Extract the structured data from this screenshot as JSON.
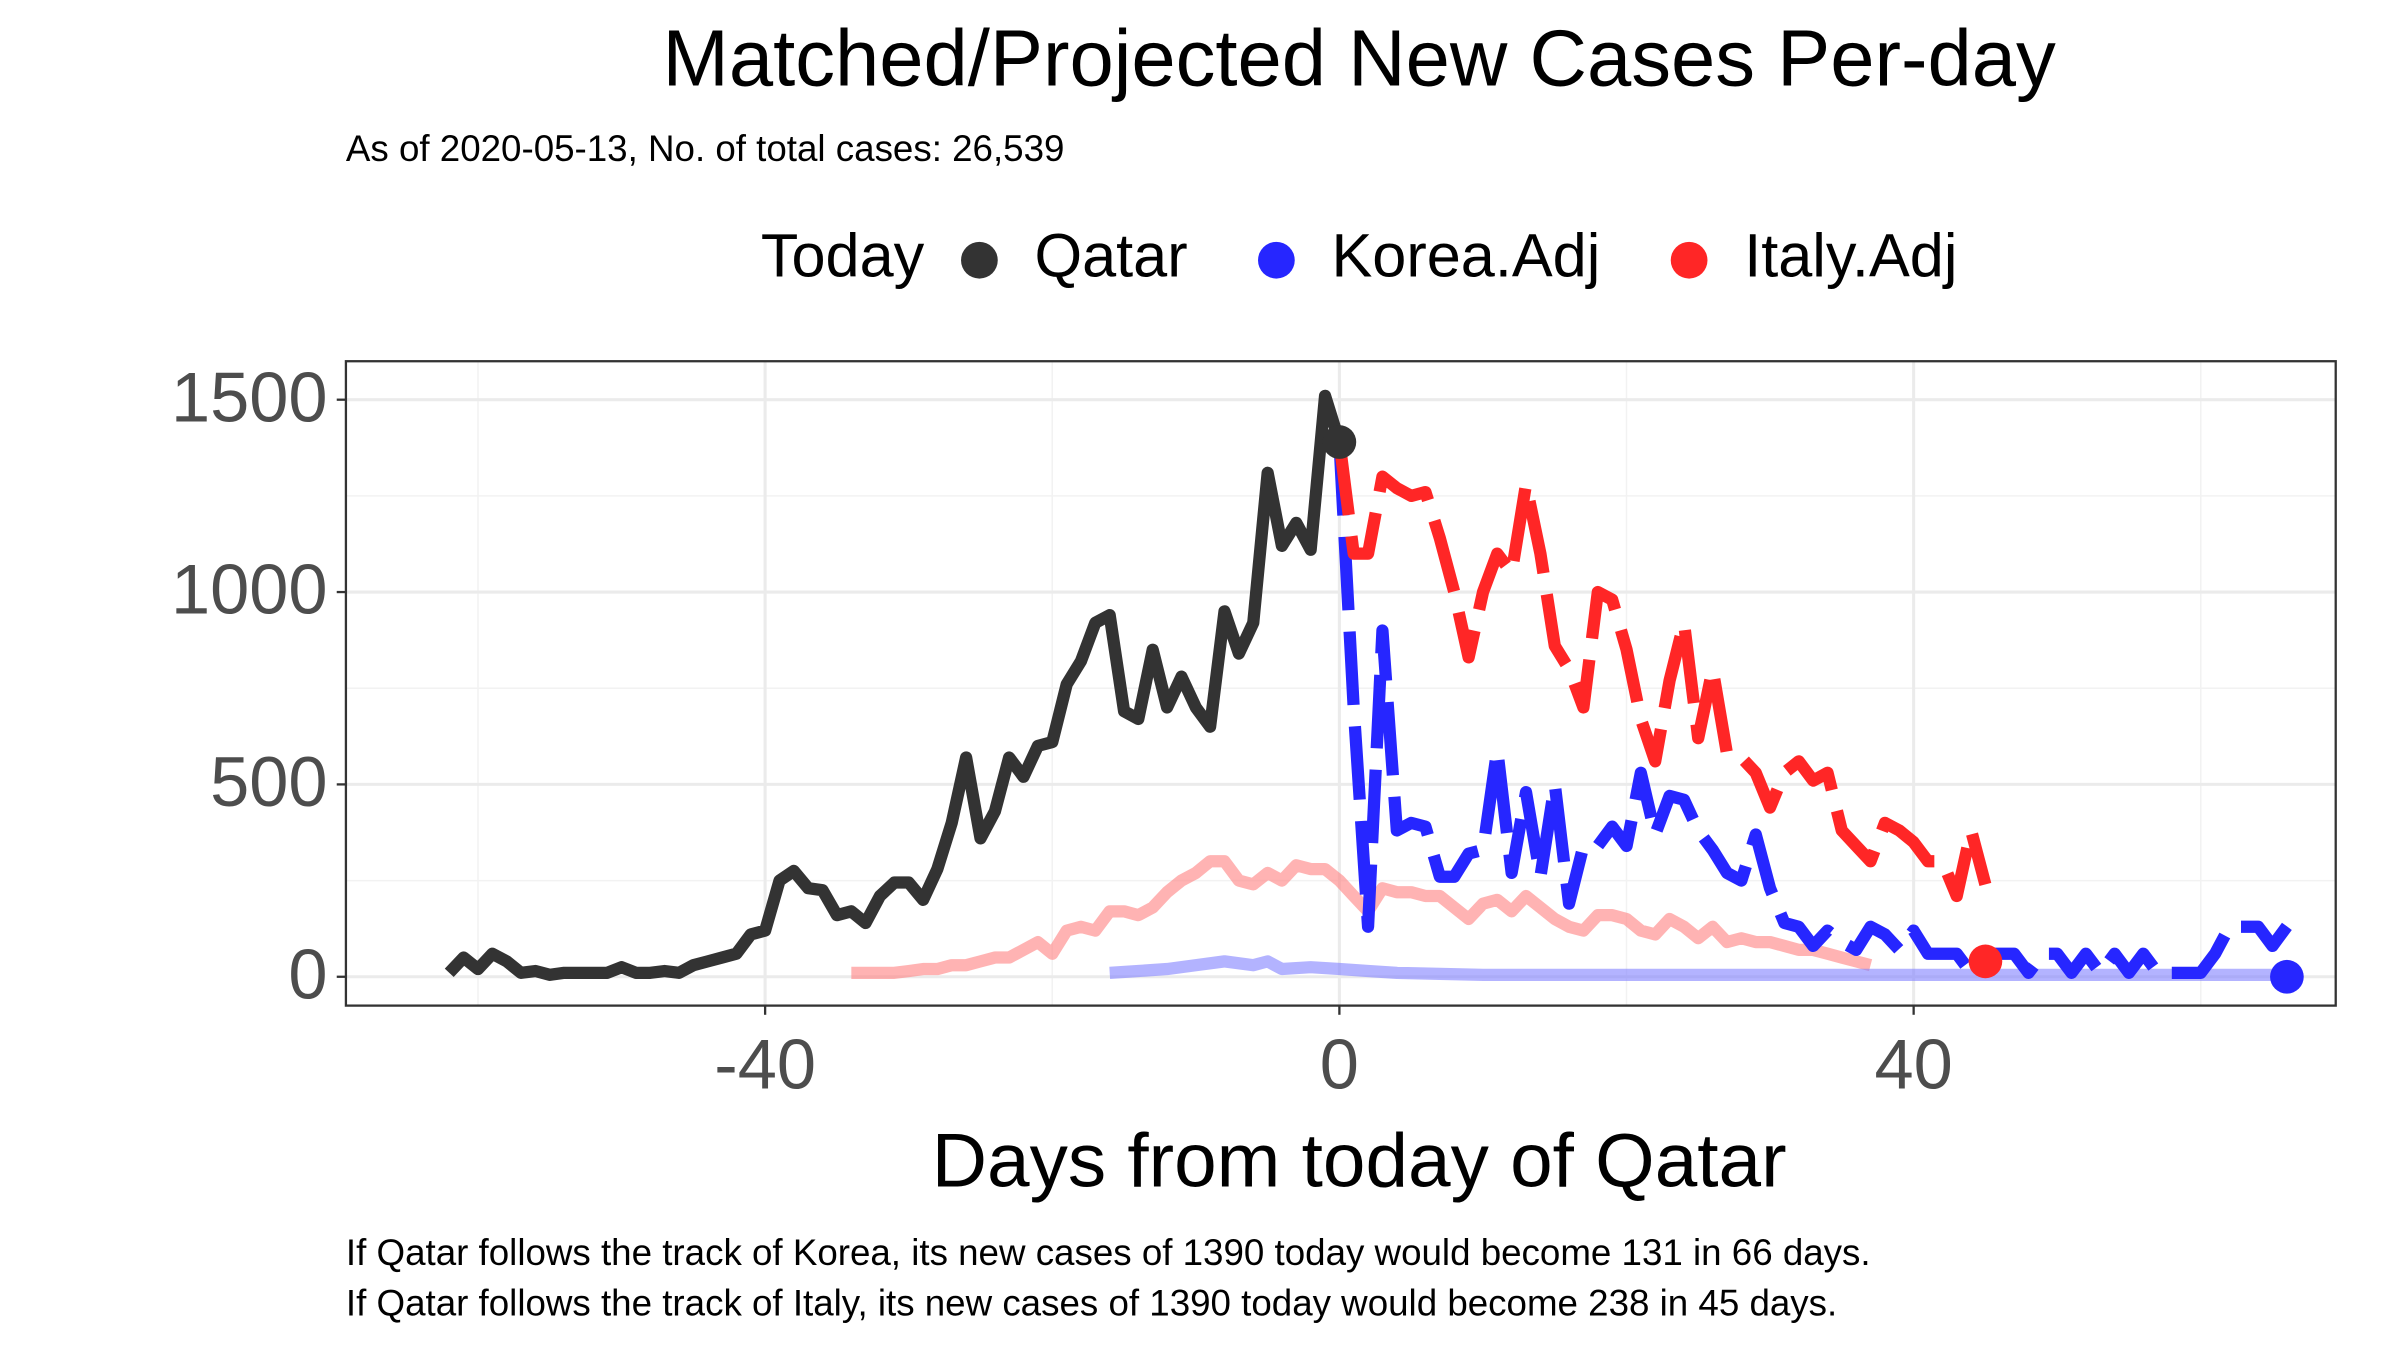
{
  "chart_data": {
    "type": "line",
    "title": "Matched/Projected New Cases Per-day",
    "subtitle": "As of 2020-05-13, No. of total cases: 26,539",
    "xlabel": "Days from today of Qatar",
    "notes": [
      "If Qatar follows the track of Korea, its new cases of 1390 today would become 131 in 66 days.",
      "If Qatar follows the track of Italy, its new cases of 1390 today would become 238 in 45 days."
    ],
    "legend_title": "Today",
    "legend_position": "top",
    "grid": true,
    "xlim": [
      -69.2,
      69.4
    ],
    "ylim": [
      -75,
      1600
    ],
    "xticks": [
      -40,
      0,
      40
    ],
    "yticks": [
      0,
      500,
      1000,
      1500
    ],
    "xminorticks": [
      -60,
      -20,
      20,
      60
    ],
    "yminorticks": [
      250,
      750,
      1250
    ],
    "series": [
      {
        "name": "Qatar",
        "color": "#333333",
        "linetype": "solid",
        "opacity": 1,
        "x": [
          -62,
          -61,
          -60,
          -59,
          -58,
          -57,
          -56,
          -55,
          -54,
          -53,
          -52,
          -51,
          -50,
          -49,
          -48,
          -47,
          -46,
          -45,
          -44,
          -43,
          -42,
          -41,
          -40,
          -39,
          -38,
          -37,
          -36,
          -35,
          -34,
          -33,
          -32,
          -31,
          -30,
          -29,
          -28,
          -27,
          -26,
          -25,
          -24,
          -23,
          -22,
          -21,
          -20,
          -19,
          -18,
          -17,
          -16,
          -15,
          -14,
          -13,
          -12,
          -11,
          -10,
          -9,
          -8,
          -7,
          -6,
          -5,
          -4,
          -3,
          -2,
          -1,
          0
        ],
        "values": [
          10,
          50,
          20,
          60,
          40,
          10,
          15,
          5,
          10,
          10,
          10,
          10,
          25,
          10,
          10,
          15,
          10,
          30,
          40,
          50,
          60,
          110,
          120,
          250,
          275,
          230,
          225,
          160,
          170,
          140,
          210,
          245,
          245,
          200,
          280,
          400,
          570,
          360,
          430,
          570,
          520,
          600,
          610,
          760,
          820,
          920,
          940,
          690,
          670,
          850,
          700,
          780,
          700,
          650,
          950,
          840,
          920,
          1310,
          1120,
          1180,
          1110,
          1510,
          1390
        ]
      },
      {
        "name": "Korea.Adj",
        "color": "#2626ff",
        "linetype": "dashed",
        "opacity": 1,
        "x": [
          0,
          1,
          2,
          3,
          4,
          5,
          6,
          7,
          8,
          9,
          10,
          11,
          12,
          13,
          14,
          15,
          16,
          17,
          18,
          19,
          20,
          21,
          22,
          23,
          24,
          25,
          26,
          27,
          28,
          29,
          30,
          31,
          32,
          33,
          34,
          35,
          36,
          37,
          38,
          39,
          40,
          41,
          42,
          43,
          44,
          45,
          46,
          47,
          48,
          49,
          50,
          51,
          52,
          53,
          54,
          55,
          56,
          57,
          58,
          59,
          60,
          61,
          62,
          63,
          64,
          65,
          66
        ],
        "values": [
          1390,
          700,
          130,
          900,
          380,
          400,
          390,
          260,
          260,
          320,
          330,
          590,
          270,
          480,
          260,
          500,
          190,
          340,
          340,
          390,
          340,
          530,
          370,
          470,
          460,
          380,
          330,
          270,
          250,
          370,
          230,
          140,
          130,
          80,
          120,
          90,
          70,
          130,
          110,
          70,
          120,
          60,
          60,
          60,
          10,
          60,
          60,
          60,
          10,
          60,
          60,
          10,
          60,
          10,
          60,
          10,
          60,
          10,
          10,
          10,
          10,
          60,
          130,
          130,
          130,
          80,
          131
        ]
      },
      {
        "name": "Italy.Adj",
        "color": "#ff2626",
        "linetype": "dashed",
        "opacity": 1,
        "x": [
          0,
          1,
          2,
          3,
          4,
          5,
          6,
          7,
          8,
          9,
          10,
          11,
          12,
          13,
          14,
          15,
          16,
          17,
          18,
          19,
          20,
          21,
          22,
          23,
          24,
          25,
          26,
          27,
          28,
          29,
          30,
          31,
          32,
          33,
          34,
          35,
          36,
          37,
          38,
          39,
          40,
          41,
          42,
          43,
          44,
          45
        ],
        "values": [
          1390,
          1100,
          1100,
          1300,
          1270,
          1250,
          1260,
          1140,
          1000,
          830,
          1000,
          1100,
          1050,
          1280,
          1100,
          860,
          800,
          700,
          1000,
          980,
          850,
          670,
          560,
          770,
          920,
          620,
          800,
          580,
          570,
          530,
          440,
          530,
          560,
          510,
          530,
          380,
          340,
          300,
          400,
          380,
          350,
          300,
          300,
          210,
          380,
          240
        ]
      },
      {
        "color": "#ff8080",
        "linetype": "solid",
        "opacity": 0.6,
        "x": [
          -34,
          -33,
          -32,
          -31,
          -30,
          -29,
          -28,
          -27,
          -26,
          -25,
          -24,
          -23,
          -22,
          -21,
          -20,
          -19,
          -18,
          -17,
          -16,
          -15,
          -14,
          -13,
          -12,
          -11,
          -10,
          -9,
          -8,
          -7,
          -6,
          -5,
          -4,
          -3,
          -2,
          -1,
          0,
          1,
          2,
          3,
          4,
          5,
          6,
          7,
          8,
          9,
          10,
          11,
          12,
          13,
          14,
          15,
          16,
          17,
          18,
          19,
          20,
          21,
          22,
          23,
          24,
          25,
          26,
          27,
          28,
          29,
          30,
          31,
          32,
          33,
          34,
          35,
          36,
          37
        ],
        "values": [
          10,
          10,
          10,
          10,
          15,
          20,
          20,
          30,
          30,
          40,
          50,
          50,
          70,
          90,
          60,
          120,
          130,
          120,
          170,
          170,
          160,
          180,
          220,
          250,
          270,
          300,
          300,
          250,
          240,
          270,
          250,
          290,
          280,
          280,
          250,
          210,
          170,
          230,
          220,
          220,
          210,
          210,
          180,
          150,
          190,
          200,
          170,
          210,
          180,
          150,
          130,
          120,
          160,
          160,
          150,
          120,
          110,
          150,
          130,
          100,
          130,
          90,
          100,
          90,
          90,
          80,
          70,
          70,
          60,
          50,
          40,
          30
        ]
      },
      {
        "color": "#8080ff",
        "linetype": "solid",
        "opacity": 0.6,
        "x": [
          -16,
          -14,
          -12,
          -10,
          -8,
          -6,
          -5,
          -4,
          -2,
          0,
          2,
          4,
          10,
          20,
          30,
          40,
          50,
          60,
          66
        ],
        "values": [
          10,
          15,
          20,
          30,
          40,
          30,
          40,
          20,
          25,
          20,
          15,
          10,
          5,
          5,
          5,
          5,
          5,
          5,
          5
        ]
      }
    ],
    "today": {
      "x": [
        0,
        66,
        45
      ],
      "values": [
        1390,
        0,
        40
      ]
    }
  }
}
